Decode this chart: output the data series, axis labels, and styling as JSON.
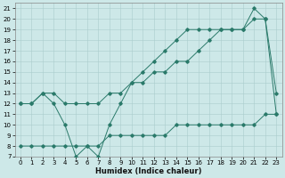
{
  "xlabel": "Humidex (Indice chaleur)",
  "background_color": "#cde8e8",
  "grid_color": "#aacccc",
  "line_color": "#2a7a6a",
  "xlim": [
    -0.5,
    23.5
  ],
  "ylim": [
    7,
    21.5
  ],
  "x_ticks": [
    0,
    1,
    2,
    3,
    4,
    5,
    6,
    7,
    8,
    9,
    10,
    11,
    12,
    13,
    14,
    15,
    16,
    17,
    18,
    19,
    20,
    21,
    22,
    23
  ],
  "y_ticks": [
    7,
    8,
    9,
    10,
    11,
    12,
    13,
    14,
    15,
    16,
    17,
    18,
    19,
    20,
    21
  ],
  "series1_x": [
    0,
    1,
    2,
    3,
    4,
    5,
    6,
    7,
    8,
    9,
    10,
    11,
    12,
    13,
    14,
    15,
    16,
    17,
    18,
    19,
    20,
    21,
    22,
    23
  ],
  "series1_y": [
    12,
    12,
    13,
    12,
    10,
    7,
    8,
    7,
    10,
    12,
    14,
    15,
    16,
    17,
    18,
    19,
    19,
    19,
    19,
    19,
    19,
    21,
    20,
    11
  ],
  "series2_x": [
    0,
    1,
    2,
    3,
    4,
    5,
    6,
    7,
    8,
    9,
    10,
    11,
    12,
    13,
    14,
    15,
    16,
    17,
    18,
    19,
    20,
    21,
    22,
    23
  ],
  "series2_y": [
    12,
    12,
    13,
    13,
    12,
    12,
    12,
    12,
    13,
    13,
    14,
    14,
    15,
    15,
    16,
    16,
    17,
    18,
    19,
    19,
    19,
    20,
    20,
    13
  ],
  "series3_x": [
    0,
    1,
    2,
    3,
    4,
    5,
    6,
    7,
    8,
    9,
    10,
    11,
    12,
    13,
    14,
    15,
    16,
    17,
    18,
    19,
    20,
    21,
    22,
    23
  ],
  "series3_y": [
    8,
    8,
    8,
    8,
    8,
    8,
    8,
    8,
    9,
    9,
    9,
    9,
    9,
    9,
    10,
    10,
    10,
    10,
    10,
    10,
    10,
    10,
    11,
    11
  ],
  "tick_fontsize": 5,
  "xlabel_fontsize": 6,
  "linewidth": 0.7,
  "markersize": 1.8
}
